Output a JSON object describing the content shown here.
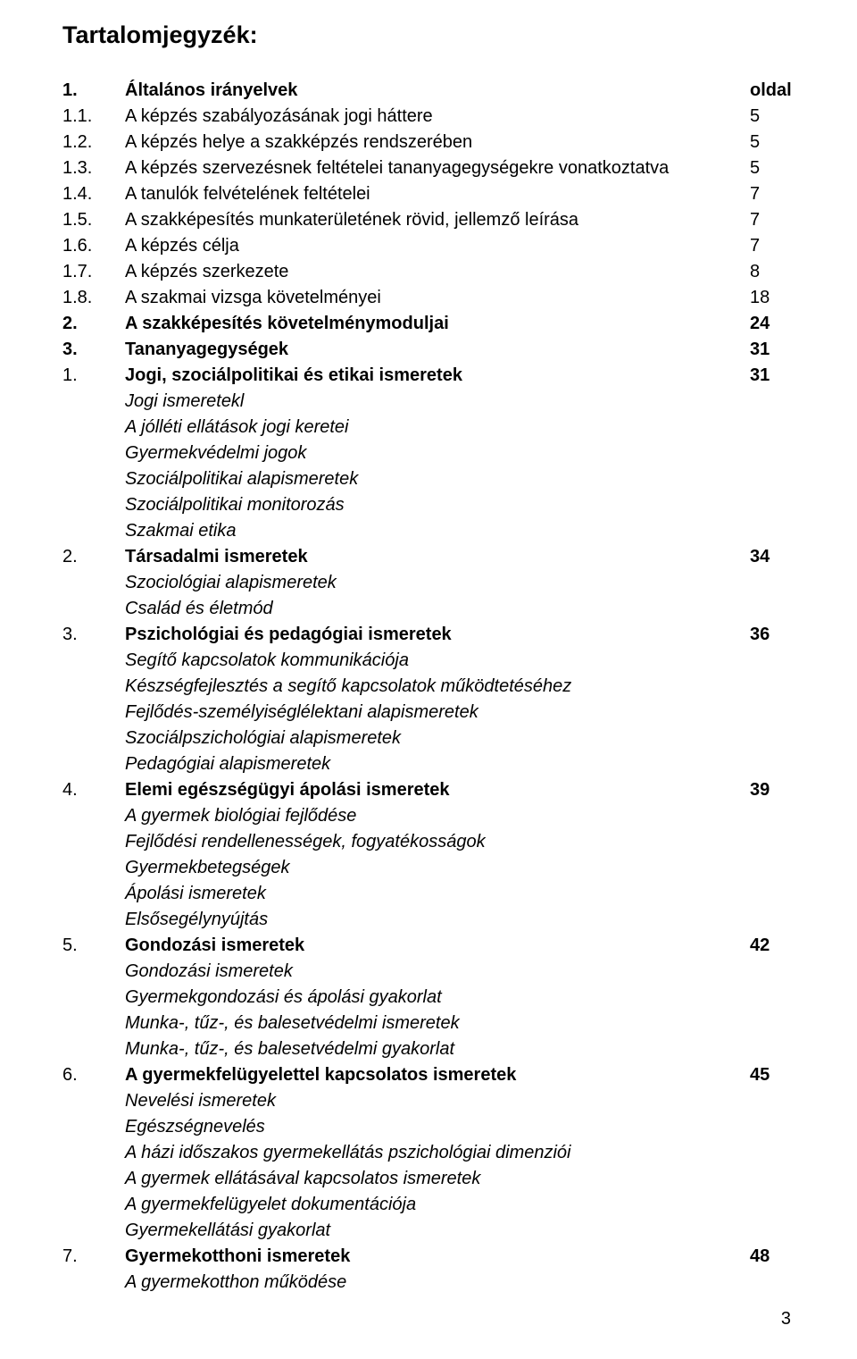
{
  "title": "Tartalomjegyzék:",
  "oldal_label": "oldal",
  "s1": {
    "num": "1.",
    "label": "Általános irányelvek",
    "items": [
      {
        "num": "1.1.",
        "label": "A képzés szabályozásának jogi háttere",
        "page": "5"
      },
      {
        "num": "1.2.",
        "label": "A képzés helye a szakképzés rendszerében",
        "page": "5"
      },
      {
        "num": "1.3.",
        "label": "A képzés szervezésnek feltételei tananyagegységekre vonatkoztatva",
        "page": "5"
      },
      {
        "num": "1.4.",
        "label": "A tanulók felvételének feltételei",
        "page": "7"
      },
      {
        "num": "1.5.",
        "label": "A szakképesítés munkaterületének rövid, jellemző leírása",
        "page": "7"
      },
      {
        "num": "1.6.",
        "label": "A képzés célja",
        "page": "7"
      },
      {
        "num": "1.7.",
        "label": "A képzés szerkezete",
        "page": "8"
      },
      {
        "num": "1.8.",
        "label": "A szakmai vizsga követelményei",
        "page": "18"
      }
    ]
  },
  "s2": {
    "num": "2.",
    "label": "A szakképesítés követelménymoduljai",
    "page": "24"
  },
  "s3": {
    "num": "3.",
    "label": "Tananyagegységek",
    "page": "31",
    "groups": [
      {
        "num": "1.",
        "label": "Jogi, szociálpolitikai és etikai ismeretek",
        "page": "31",
        "subs": [
          "Jogi ismeretekl",
          "A jólléti ellátások jogi keretei",
          "Gyermekvédelmi jogok",
          "Szociálpolitikai alapismeretek",
          "Szociálpolitikai monitorozás",
          "Szakmai etika"
        ]
      },
      {
        "num": "2.",
        "label": "Társadalmi ismeretek",
        "page": "34",
        "subs": [
          "Szociológiai alapismeretek",
          "Család és életmód"
        ]
      },
      {
        "num": "3.",
        "label": "Pszichológiai és pedagógiai ismeretek",
        "page": "36",
        "subs": [
          "Segítő kapcsolatok kommunikációja",
          "Készségfejlesztés a segítő kapcsolatok működtetéséhez",
          "Fejlődés-személyiséglélektani alapismeretek",
          "Szociálpszichológiai alapismeretek",
          "Pedagógiai alapismeretek"
        ]
      },
      {
        "num": "4.",
        "label": "Elemi egészségügyi ápolási ismeretek",
        "page": "39",
        "subs": [
          "A gyermek biológiai fejlődése",
          "Fejlődési rendellenességek, fogyatékosságok",
          "Gyermekbetegségek",
          "Ápolási ismeretek",
          "Elsősegélynyújtás"
        ]
      },
      {
        "num": "5.",
        "label": "Gondozási ismeretek",
        "page": "42",
        "subs": [
          "Gondozási ismeretek",
          "Gyermekgondozási és ápolási gyakorlat",
          "Munka-, tűz-, és balesetvédelmi ismeretek",
          "Munka-, tűz-, és balesetvédelmi gyakorlat"
        ]
      },
      {
        "num": "6.",
        "label": "A gyermekfelügyelettel kapcsolatos ismeretek",
        "page": "45",
        "subs": [
          "Nevelési ismeretek",
          "Egészségnevelés",
          "A házi időszakos gyermekellátás pszichológiai dimenziói",
          "A gyermek ellátásával kapcsolatos ismeretek",
          "A gyermekfelügyelet dokumentációja",
          "Gyermekellátási gyakorlat"
        ]
      },
      {
        "num": "7.",
        "label": "Gyermekotthoni ismeretek",
        "page": "48",
        "subs": [
          "A gyermekotthon működése"
        ]
      }
    ]
  },
  "footer_page": "3"
}
